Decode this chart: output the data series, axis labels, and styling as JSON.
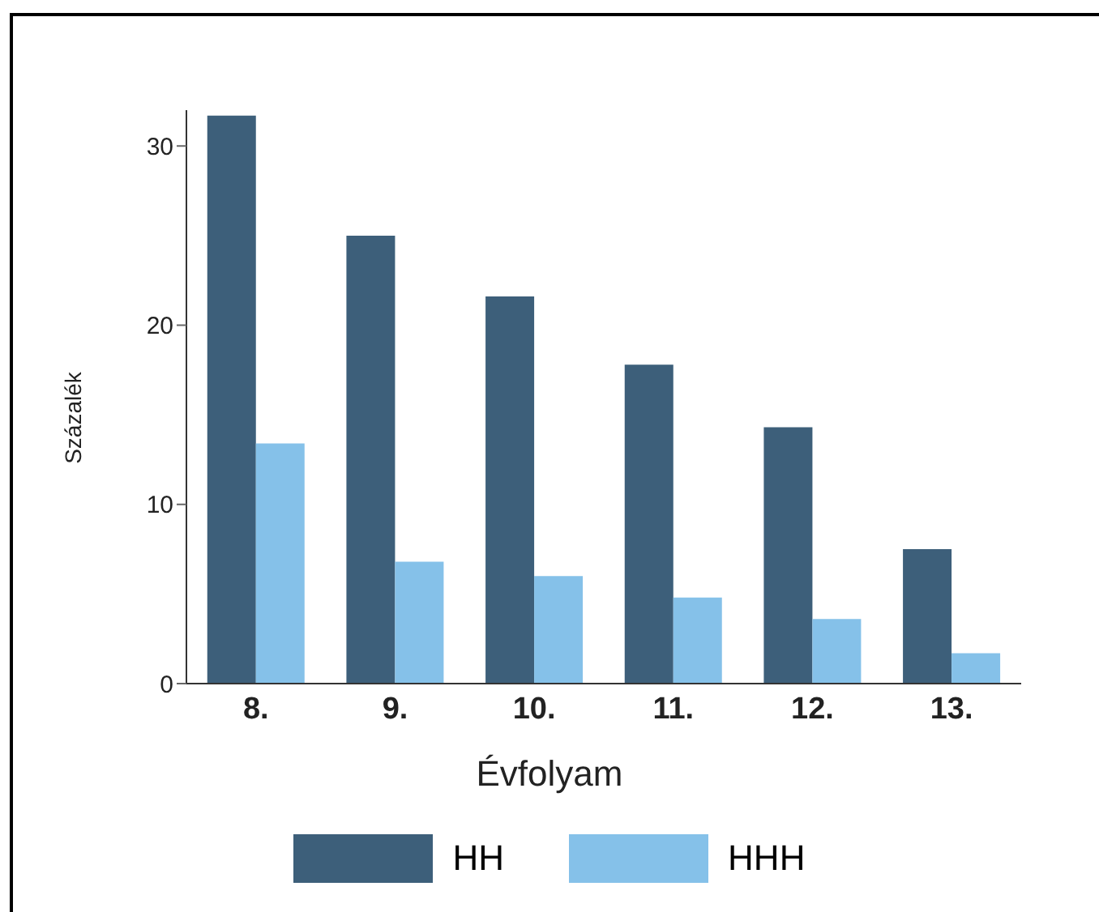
{
  "chart_data": {
    "type": "bar",
    "xlabel": "Évfolyam",
    "ylabel": "Százalék",
    "categories": [
      "8.",
      "9.",
      "10.",
      "11.",
      "12.",
      "13."
    ],
    "series": [
      {
        "name": "HH",
        "color": "#3d5f7a",
        "values": [
          31.7,
          25.0,
          21.6,
          17.8,
          14.3,
          7.5
        ]
      },
      {
        "name": "HHH",
        "color": "#85c1e9",
        "values": [
          13.4,
          6.8,
          6.0,
          4.8,
          3.6,
          1.7
        ]
      }
    ],
    "ylim": [
      0,
      32
    ],
    "yticks": [
      0,
      10,
      20,
      30
    ],
    "legend": "bottom"
  }
}
